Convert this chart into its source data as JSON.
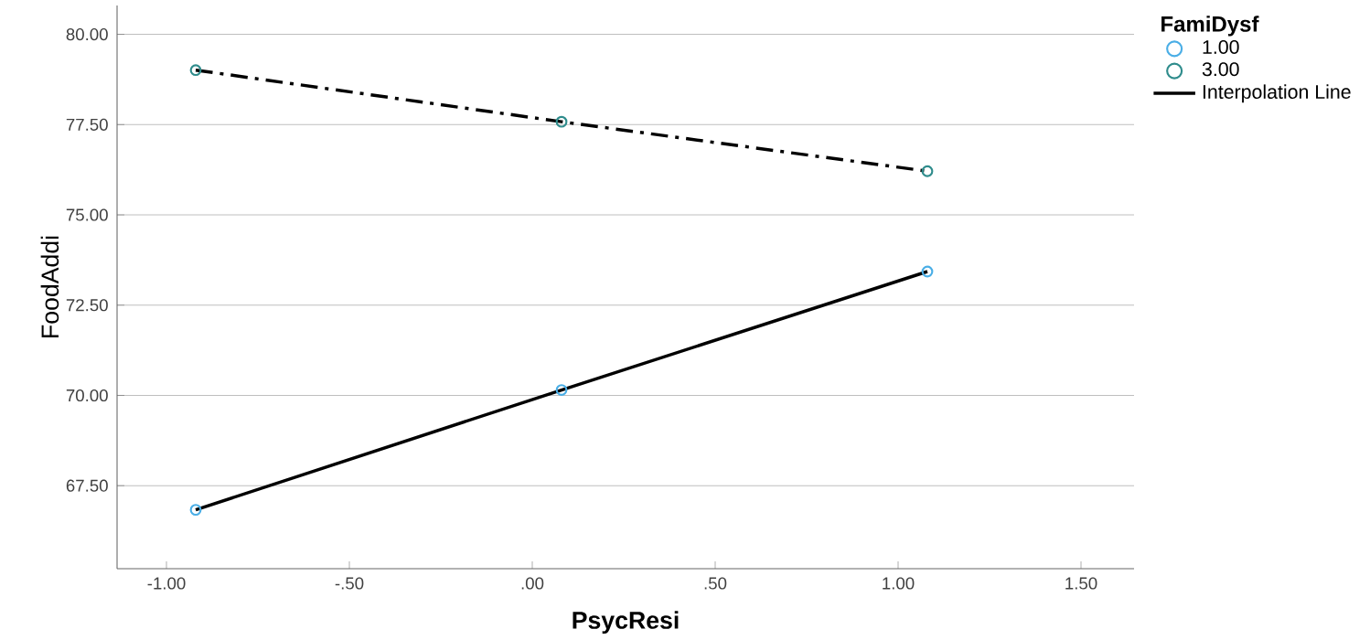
{
  "chart_data": {
    "type": "scatter",
    "xlabel": "PsycResi",
    "ylabel": "FoodAddi",
    "legend_title": "FamiDysf",
    "xlim": [
      -1.135,
      1.645
    ],
    "ylim": [
      65.2,
      80.8
    ],
    "xticks": [
      {
        "value": -1,
        "label": "-1.00"
      },
      {
        "value": -0.5,
        "label": "-.50"
      },
      {
        "value": 0,
        "label": ".00"
      },
      {
        "value": 0.5,
        "label": ".50"
      },
      {
        "value": 1,
        "label": "1.00"
      },
      {
        "value": 1.5,
        "label": "1.50"
      }
    ],
    "yticks": [
      {
        "value": 67.5,
        "label": "67.50"
      },
      {
        "value": 70,
        "label": "70.00"
      },
      {
        "value": 72.5,
        "label": "72.50"
      },
      {
        "value": 75,
        "label": "75.00"
      },
      {
        "value": 77.5,
        "label": "77.50"
      },
      {
        "value": 80,
        "label": "80.00"
      }
    ],
    "grid": "y",
    "legend": "top right",
    "series": [
      {
        "name": "1.00",
        "marker": "circle",
        "color": "#4aaee6",
        "x": [
          -0.92,
          0.08,
          1.08
        ],
        "values": [
          66.83,
          70.15,
          73.43
        ]
      },
      {
        "name": "3.00",
        "marker": "circle",
        "color": "#2f8c8c",
        "x": [
          -0.92,
          0.08,
          1.08
        ],
        "values": [
          79.01,
          77.58,
          76.21
        ]
      },
      {
        "name": "Interpolation Line",
        "type": "line",
        "marker": "none",
        "line_style": "solid",
        "color": "#000000",
        "x": [
          -0.92,
          0.08,
          1.08
        ],
        "values": [
          66.83,
          70.15,
          73.43
        ]
      },
      {
        "type": "line",
        "marker": "none",
        "line_style": "dashdot",
        "color": "#000000",
        "x": [
          -0.92,
          0.08,
          1.08
        ],
        "values": [
          79.01,
          77.58,
          76.21
        ]
      }
    ]
  }
}
